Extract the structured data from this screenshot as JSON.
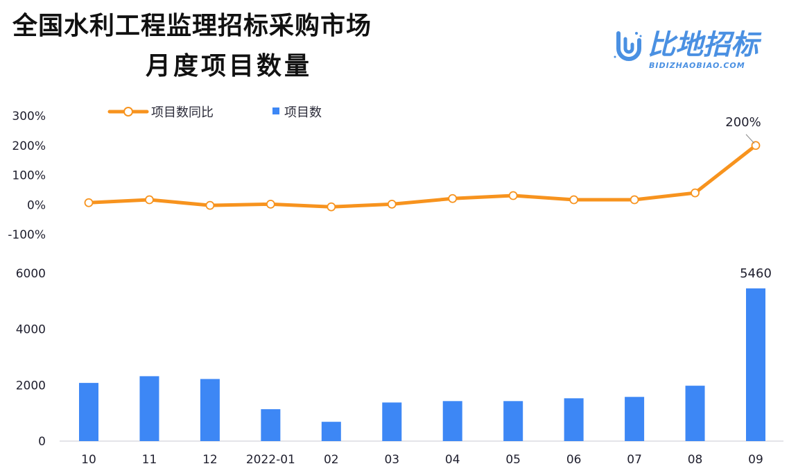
{
  "title": {
    "line1": "全国水利工程监理招标采购市场",
    "line2": "月度项目数量"
  },
  "logo": {
    "name_cn": "比地招标",
    "name_en": "BIDIZHAOBIAO.COM",
    "color": "#4a90e2"
  },
  "legend": {
    "line_series": "项目数同比",
    "bar_series": "项目数"
  },
  "colors": {
    "line": "#f7931e",
    "bar": "#3d87f5",
    "axis_line": "#c8c8d0"
  },
  "chart_data": [
    {
      "type": "line",
      "title": "全国水利工程监理招标采购市场月度项目数量",
      "series": [
        {
          "name": "项目数同比",
          "unit": "%",
          "values": [
            7,
            17,
            -2,
            2,
            -7,
            2,
            21,
            31,
            17,
            17,
            40,
            200
          ]
        }
      ],
      "categories": [
        "10",
        "11",
        "12",
        "2022-01",
        "02",
        "03",
        "04",
        "05",
        "06",
        "07",
        "08",
        "09"
      ],
      "ylabel": "",
      "xlabel": "",
      "ylim": [
        -100,
        300
      ],
      "yticks": [
        "300%",
        "200%",
        "100%",
        "0%",
        "-100%"
      ],
      "annotations": [
        {
          "category": "09",
          "text": "200%"
        }
      ],
      "grid": false,
      "legend_position": "top"
    },
    {
      "type": "bar",
      "series": [
        {
          "name": "项目数",
          "values": [
            2080,
            2320,
            2220,
            1140,
            690,
            1380,
            1430,
            1430,
            1530,
            1580,
            1980,
            5460
          ]
        }
      ],
      "categories": [
        "10",
        "11",
        "12",
        "2022-01",
        "02",
        "03",
        "04",
        "05",
        "06",
        "07",
        "08",
        "09"
      ],
      "ylabel": "",
      "xlabel": "",
      "ylim": [
        0,
        6000
      ],
      "yticks": [
        "6000",
        "4000",
        "2000",
        "0"
      ],
      "annotations": [
        {
          "category": "09",
          "text": "5460"
        }
      ],
      "grid": false,
      "legend_position": "top"
    }
  ]
}
